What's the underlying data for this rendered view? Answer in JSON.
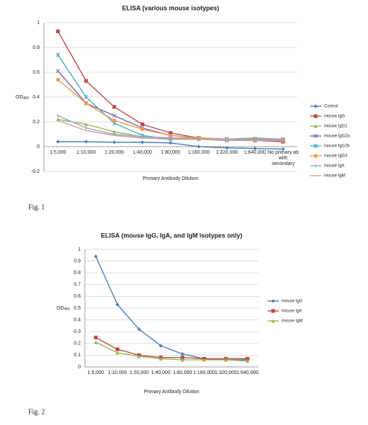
{
  "captions": [
    "Fig. 1",
    "Fig. 2"
  ],
  "chart_data": [
    {
      "type": "line",
      "title": "ELISA (various mouse isotypes)",
      "y_label": "OD",
      "y_label_subscript": "450",
      "x_label": "Primary Antibody Dilution",
      "categories": [
        "1:5,000",
        "1:10,000",
        "1:20,000",
        "1:40,000",
        "1:80,000",
        "1:160,000",
        "1:320,000",
        "1:640,000",
        "No primary ab with secondary"
      ],
      "ylim": [
        -0.2,
        1
      ],
      "yticks": [
        -0.2,
        0,
        0.2,
        0.4,
        0.6,
        0.8,
        1
      ],
      "grid": true,
      "legend": "right",
      "series": [
        {
          "name": "Control",
          "color": "#4a7ebb",
          "marker": "diamond",
          "values": [
            0.04,
            0.04,
            0.035,
            0.035,
            0.03,
            0.0,
            -0.01,
            -0.015,
            -0.02
          ]
        },
        {
          "name": "mouse IgG",
          "color": "#be4b48",
          "marker": "square",
          "values": [
            0.93,
            0.53,
            0.32,
            0.18,
            0.11,
            0.07,
            0.06,
            0.05,
            0.04
          ]
        },
        {
          "name": "mouse IgG1",
          "color": "#98b954",
          "marker": "triangle",
          "values": [
            0.22,
            0.18,
            0.12,
            0.08,
            0.07,
            0.07,
            0.06,
            0.07,
            0.06
          ]
        },
        {
          "name": "mouse IgG2a",
          "color": "#7d60a0",
          "marker": "x",
          "values": [
            0.61,
            0.35,
            0.25,
            0.15,
            0.09,
            0.07,
            0.06,
            0.06,
            0.06
          ]
        },
        {
          "name": "mouse IgG2b",
          "color": "#46aac5",
          "marker": "star",
          "values": [
            0.74,
            0.4,
            0.19,
            0.09,
            0.06,
            0.06,
            0.05,
            0.05,
            0.05
          ]
        },
        {
          "name": "mouse IgG3",
          "color": "#f79646",
          "marker": "circle",
          "values": [
            0.54,
            0.35,
            0.21,
            0.14,
            0.09,
            0.07,
            0.06,
            0.05,
            0.05
          ]
        },
        {
          "name": "mouse IgA",
          "color": "#92a9cf",
          "marker": "plus",
          "values": [
            0.25,
            0.15,
            0.1,
            0.08,
            0.07,
            0.06,
            0.06,
            0.06,
            0.06
          ]
        },
        {
          "name": "mouse IgM",
          "color": "#d99694",
          "marker": "none",
          "values": [
            0.21,
            0.13,
            0.09,
            0.07,
            0.06,
            0.06,
            0.05,
            0.05,
            0.05
          ]
        }
      ]
    },
    {
      "type": "line",
      "title": "ELISA (mouse IgG, IgA, and IgM isotypes only)",
      "y_label": "OD",
      "y_label_subscript": "450",
      "x_label": "Primary Antibody Dilution",
      "categories": [
        "1:5,000",
        "1:10,000",
        "1:20,000",
        "1:40,000",
        "1:80,000",
        "1:160,000",
        "1:320,000",
        "1:640,000"
      ],
      "ylim": [
        0,
        1
      ],
      "yticks": [
        0,
        0.1,
        0.2,
        0.3,
        0.4,
        0.5,
        0.6,
        0.7,
        0.8,
        0.9,
        1
      ],
      "grid": true,
      "legend": "right",
      "series": [
        {
          "name": "mouse IgG",
          "color": "#4a7ebb",
          "marker": "diamond",
          "values": [
            0.94,
            0.53,
            0.32,
            0.18,
            0.11,
            0.07,
            0.06,
            0.06
          ]
        },
        {
          "name": "mouse IgA",
          "color": "#be4b48",
          "marker": "square",
          "values": [
            0.25,
            0.15,
            0.1,
            0.08,
            0.08,
            0.07,
            0.07,
            0.07
          ]
        },
        {
          "name": "mouse IgM",
          "color": "#98b954",
          "marker": "triangle",
          "values": [
            0.21,
            0.12,
            0.09,
            0.07,
            0.06,
            0.06,
            0.06,
            0.05
          ]
        }
      ]
    }
  ]
}
